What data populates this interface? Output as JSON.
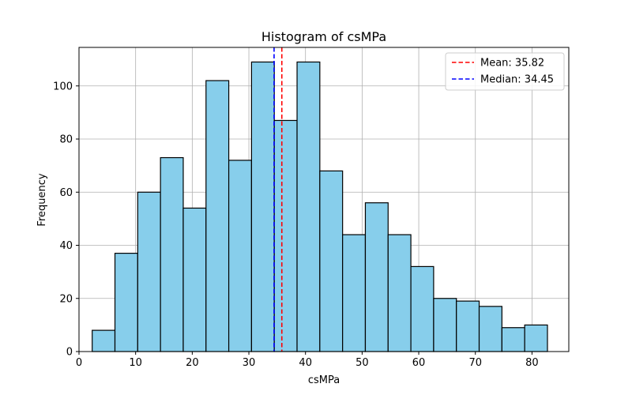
{
  "chart_data": {
    "type": "bar",
    "title": "Histogram of csMPa",
    "xlabel": "csMPa",
    "ylabel": "Frequency",
    "xlim": [
      0,
      86.5
    ],
    "ylim": [
      0,
      114.5
    ],
    "xticks": [
      0,
      10,
      20,
      30,
      40,
      50,
      60,
      70,
      80
    ],
    "yticks": [
      0,
      20,
      40,
      60,
      80,
      100
    ],
    "grid": true,
    "legend_position": "top-right",
    "bins": [
      {
        "start": 2.33,
        "end": 6.35,
        "count": 8
      },
      {
        "start": 6.35,
        "end": 10.37,
        "count": 37
      },
      {
        "start": 10.37,
        "end": 14.39,
        "count": 60
      },
      {
        "start": 14.39,
        "end": 18.41,
        "count": 73
      },
      {
        "start": 18.41,
        "end": 22.43,
        "count": 54
      },
      {
        "start": 22.43,
        "end": 26.45,
        "count": 102
      },
      {
        "start": 26.45,
        "end": 30.47,
        "count": 72
      },
      {
        "start": 30.47,
        "end": 34.49,
        "count": 109
      },
      {
        "start": 34.49,
        "end": 38.51,
        "count": 87
      },
      {
        "start": 38.51,
        "end": 42.53,
        "count": 109
      },
      {
        "start": 42.53,
        "end": 46.55,
        "count": 68
      },
      {
        "start": 46.55,
        "end": 50.57,
        "count": 44
      },
      {
        "start": 50.57,
        "end": 54.59,
        "count": 56
      },
      {
        "start": 54.59,
        "end": 58.61,
        "count": 44
      },
      {
        "start": 58.61,
        "end": 62.63,
        "count": 32
      },
      {
        "start": 62.63,
        "end": 66.65,
        "count": 20
      },
      {
        "start": 66.65,
        "end": 70.67,
        "count": 19
      },
      {
        "start": 70.67,
        "end": 74.69,
        "count": 17
      },
      {
        "start": 74.69,
        "end": 78.71,
        "count": 9
      },
      {
        "start": 78.71,
        "end": 82.73,
        "count": 10
      }
    ],
    "bar_color": "#87ceeb",
    "bar_edge_color": "#000000",
    "lines": [
      {
        "label": "Mean: 35.82",
        "value": 35.82,
        "color": "#ff0000",
        "style": "dashed"
      },
      {
        "label": "Median: 34.45",
        "value": 34.45,
        "color": "#0000ff",
        "style": "dashed"
      }
    ]
  }
}
